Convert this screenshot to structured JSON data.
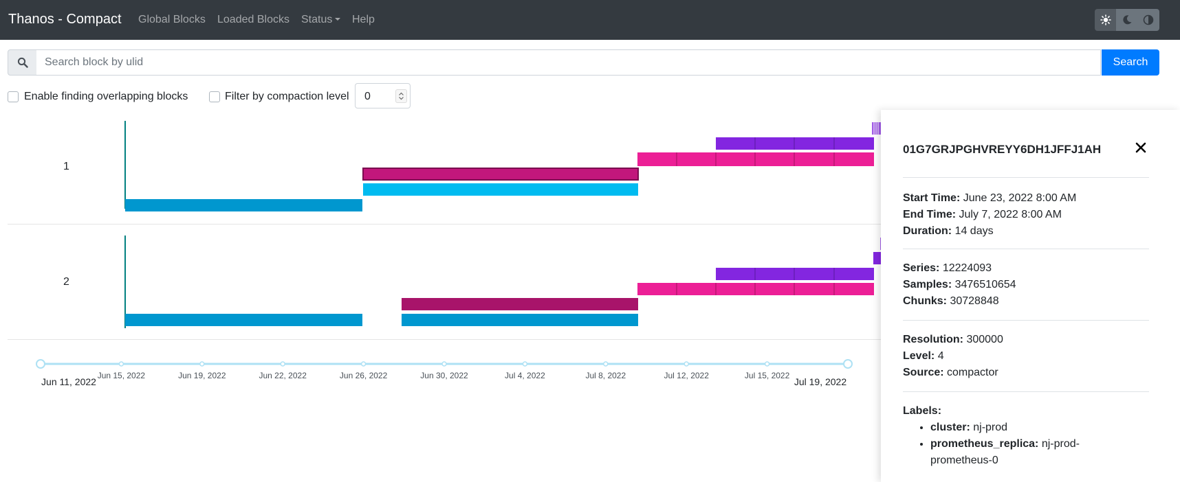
{
  "navbar": {
    "brand": "Thanos - Compact",
    "items": [
      "Global Blocks",
      "Loaded Blocks",
      "Status",
      "Help"
    ],
    "theme_buttons": [
      "sun-icon",
      "moon-icon",
      "contrast-icon"
    ]
  },
  "search": {
    "placeholder": "Search block by ulid",
    "value": "",
    "button_label": "Search"
  },
  "filters": {
    "overlap_label": "Enable finding overlapping blocks",
    "overlap_checked": false,
    "compaction_label": "Filter by compaction level",
    "compaction_checked": false,
    "compaction_level": "0"
  },
  "timeline": {
    "rows": [
      {
        "label": "1"
      },
      {
        "label": "2"
      }
    ],
    "range_start": "Jun 11, 2022",
    "range_end": "Jul 19, 2022",
    "ticks": [
      "Jun 15, 2022",
      "Jun 19, 2022",
      "Jun 22, 2022",
      "Jun 26, 2022",
      "Jun 30, 2022",
      "Jul 4, 2022",
      "Jul 8, 2022",
      "Jul 12, 2022",
      "Jul 15, 2022"
    ],
    "colors": {
      "level1": "#0097cf",
      "level2_light": "#00bbf0",
      "level3": "#c2177c",
      "level3_dark": "#a8146a",
      "level4_pink": "#ec1f96",
      "level5_purple": "#8326e0",
      "level6_light_purple": "#a25ce8",
      "axis_line": "#aee1f4",
      "row_marker": "#008080"
    }
  },
  "details": {
    "block_id": "01G7GRJPGHVREYY6DH1JFFJ1AH",
    "start_time_label": "Start Time:",
    "start_time": "June 23, 2022 8:00 AM",
    "end_time_label": "End Time:",
    "end_time": "July 7, 2022 8:00 AM",
    "duration_label": "Duration:",
    "duration": "14 days",
    "series_label": "Series:",
    "series": "12224093",
    "samples_label": "Samples:",
    "samples": "3476510654",
    "chunks_label": "Chunks:",
    "chunks": "30728848",
    "resolution_label": "Resolution:",
    "resolution": "300000",
    "level_label": "Level:",
    "level": "4",
    "source_label": "Source:",
    "source": "compactor",
    "labels_title": "Labels:",
    "labels": [
      {
        "key": "cluster:",
        "value": "nj-prod"
      },
      {
        "key": "prometheus_replica:",
        "value": "nj-prod-prometheus-0"
      }
    ]
  }
}
